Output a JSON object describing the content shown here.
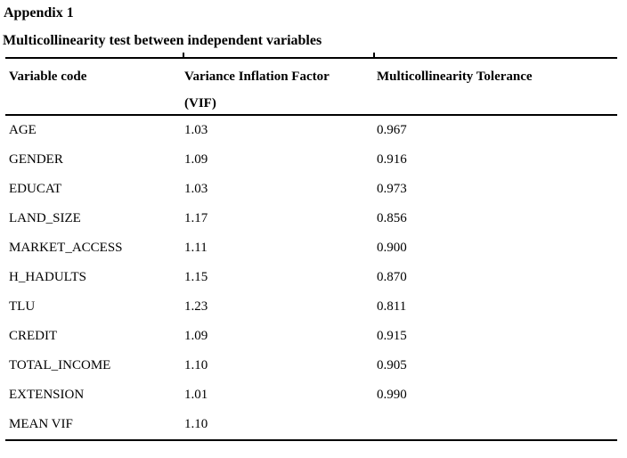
{
  "document": {
    "appendix_label": "Appendix 1",
    "table_caption": "Multicollinearity test between independent variables"
  },
  "table": {
    "columns": {
      "variable": "Variable code",
      "vif_line1": "Variance Inflation Factor",
      "vif_line2": "(VIF)",
      "tolerance": "Multicollinearity Tolerance"
    },
    "rows": [
      {
        "variable": "AGE",
        "vif": "1.03",
        "tolerance": "0.967"
      },
      {
        "variable": "GENDER",
        "vif": "1.09",
        "tolerance": "0.916"
      },
      {
        "variable": "EDUCAT",
        "vif": "1.03",
        "tolerance": "0.973"
      },
      {
        "variable": "LAND_SIZE",
        "vif": "1.17",
        "tolerance": "0.856"
      },
      {
        "variable": "MARKET_ACCESS",
        "vif": "1.11",
        "tolerance": "0.900"
      },
      {
        "variable": "H_HADULTS",
        "vif": "1.15",
        "tolerance": "0.870"
      },
      {
        "variable": "TLU",
        "vif": "1.23",
        "tolerance": "0.811"
      },
      {
        "variable": "CREDIT",
        "vif": "1.09",
        "tolerance": "0.915"
      },
      {
        "variable": "TOTAL_INCOME",
        "vif": "1.10",
        "tolerance": "0.905"
      },
      {
        "variable": "EXTENSION",
        "vif": "1.01",
        "tolerance": "0.990"
      },
      {
        "variable": "MEAN VIF",
        "vif": "1.10",
        "tolerance": ""
      }
    ]
  },
  "colors": {
    "text": "#000000",
    "background": "#ffffff",
    "rule": "#000000"
  }
}
